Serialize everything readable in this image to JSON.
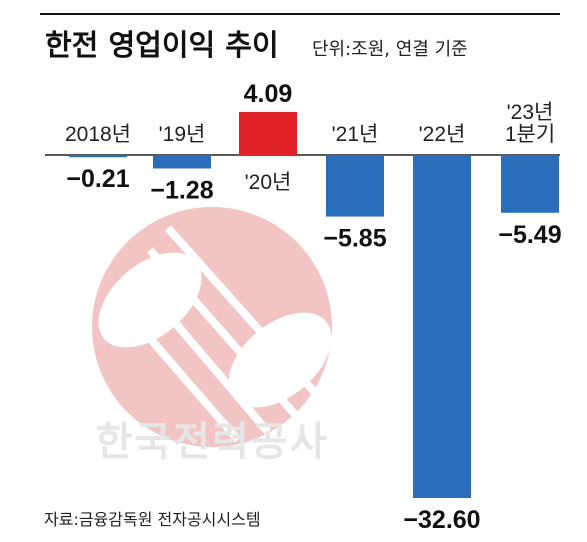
{
  "title": "한전 영업이익 추이",
  "unit_note": "단위:조원, 연결 기준",
  "source": "자료:금융감독원 전자공시시스템",
  "watermark_text": "한국전력공사",
  "colors": {
    "negative": "#2a6ebb",
    "positive": "#e02128",
    "watermark_logo": "#f3c4c4",
    "watermark_text": "#e6e6e6"
  },
  "chart_data": {
    "type": "bar",
    "title": "한전 영업이익 추이",
    "unit": "단위:조원, 연결 기준",
    "categories": [
      [
        "2018년"
      ],
      [
        "'19년"
      ],
      [
        "'20년"
      ],
      [
        "'21년"
      ],
      [
        "'22년"
      ],
      [
        "'23년",
        "1분기"
      ]
    ],
    "values": [
      -0.21,
      -1.28,
      4.09,
      -5.85,
      -32.6,
      -5.49
    ],
    "value_labels": [
      "−0.21",
      "−1.28",
      "4.09",
      "−5.85",
      "−32.60",
      "−5.49"
    ],
    "ylim": [
      -32.6,
      4.09
    ],
    "grid": false,
    "legend": "none"
  }
}
